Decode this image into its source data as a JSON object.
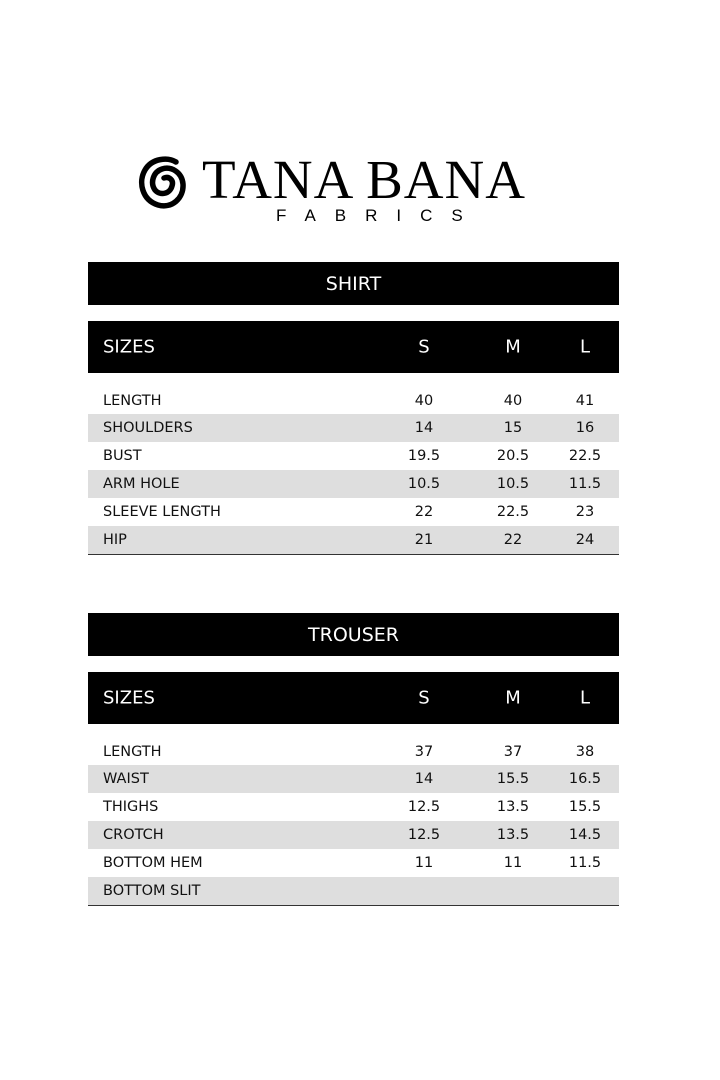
{
  "logo": {
    "brand": "TANA BANA",
    "sub": "FABRICS",
    "icon": "spiral-icon"
  },
  "colors": {
    "bar": "#000000",
    "alt_row": "#dedede"
  },
  "shirt": {
    "title": "SHIRT",
    "header": [
      "SIZES",
      "S",
      "M",
      "L"
    ],
    "rows": [
      [
        "LENGTH",
        "40",
        "40",
        "41"
      ],
      [
        "SHOULDERS",
        "14",
        "15",
        "16"
      ],
      [
        "BUST",
        "19.5",
        "20.5",
        "22.5"
      ],
      [
        "ARM HOLE",
        "10.5",
        "10.5",
        "11.5"
      ],
      [
        "SLEEVE LENGTH",
        "22",
        "22.5",
        "23"
      ],
      [
        "HIP",
        "21",
        "22",
        "24"
      ]
    ]
  },
  "trouser": {
    "title": "TROUSER",
    "header": [
      "SIZES",
      "S",
      "M",
      "L"
    ],
    "rows": [
      [
        "LENGTH",
        "37",
        "37",
        "38"
      ],
      [
        "WAIST",
        "14",
        "15.5",
        "16.5"
      ],
      [
        "THIGHS",
        "12.5",
        "13.5",
        "15.5"
      ],
      [
        "CROTCH",
        "12.5",
        "13.5",
        "14.5"
      ],
      [
        "BOTTOM HEM",
        "11",
        "11",
        "11.5"
      ],
      [
        "BOTTOM SLIT",
        "",
        "",
        ""
      ]
    ]
  }
}
